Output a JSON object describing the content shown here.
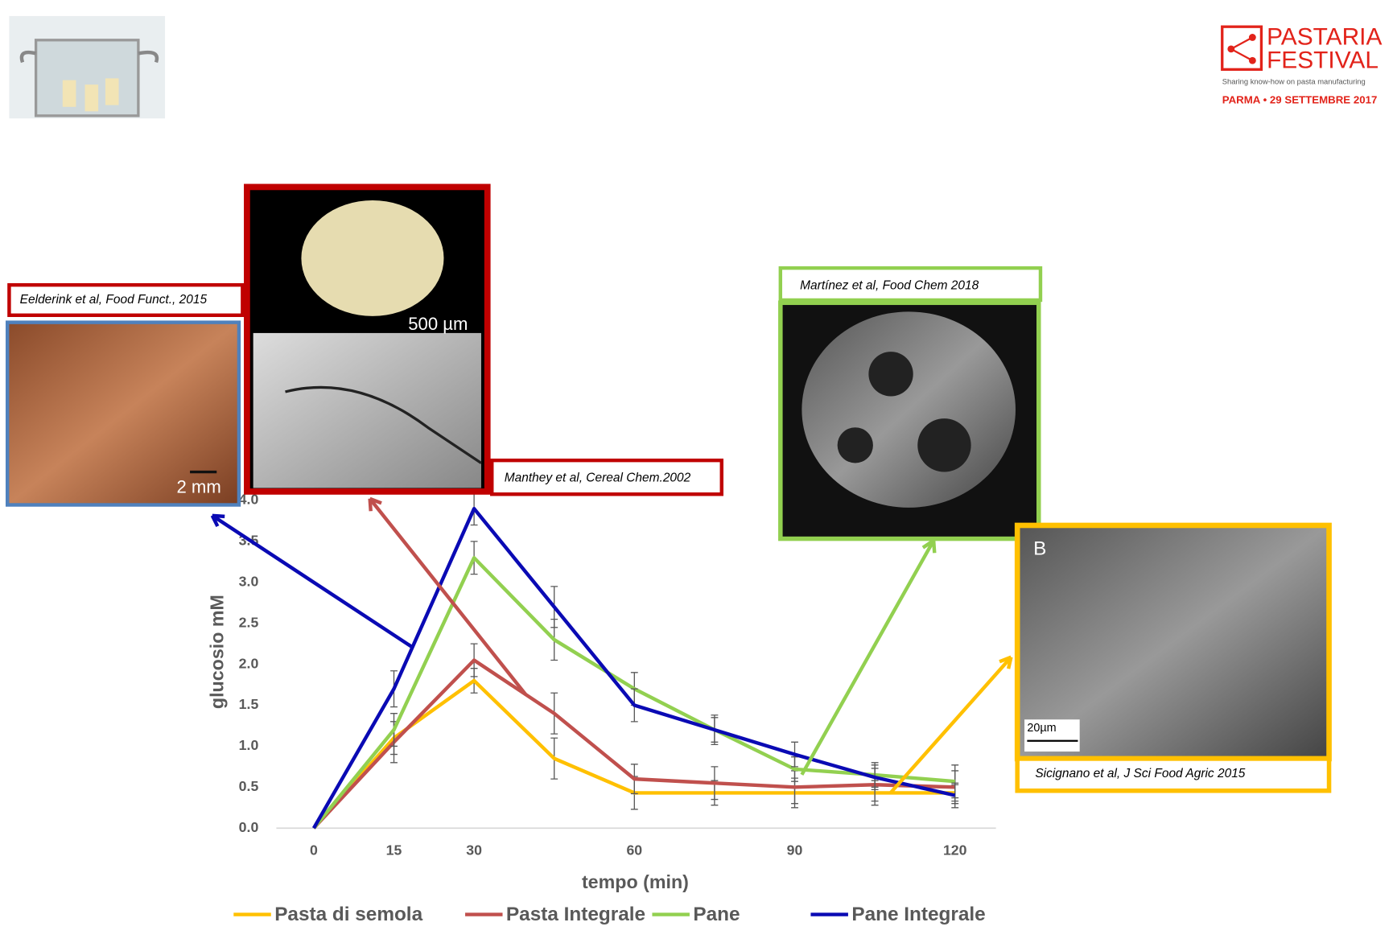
{
  "header": {
    "logo_line1": "PASTARIA",
    "logo_line2": "FESTIVAL",
    "tagline": "Sharing know-how on pasta manufacturing",
    "event": "PARMA • 29 SETTEMBRE 2017"
  },
  "figures": [
    {
      "citation": "Eelderink et al, Food Funct., 2015",
      "scale_label": "2 mm"
    },
    {
      "citation": "Manthey et al, Cereal Chem.2002",
      "scale_label": "500 µm"
    },
    {
      "citation": "Martínez et al, Food Chem 2018"
    },
    {
      "citation": "Sicignano  et al,  J  Sci Food Agric  2015",
      "panel_label": "B",
      "scale_label": "20µm"
    }
  ],
  "chart_data": {
    "type": "line",
    "xlabel": "tempo (min)",
    "ylabel": "glucosio mM",
    "x": [
      0,
      15,
      30,
      45,
      60,
      75,
      90,
      105,
      120
    ],
    "xlim": [
      0,
      120
    ],
    "xticks": [
      0,
      15,
      30,
      60,
      90,
      120
    ],
    "ylim": [
      0,
      4
    ],
    "yticks": [
      {
        "value": 0,
        "label": "0.0"
      },
      0.5,
      {
        "value": 1,
        "label": "1.0"
      },
      1.5,
      {
        "value": 2,
        "label": "2.0"
      },
      2.5,
      {
        "value": 3,
        "label": "3.0"
      },
      3.5,
      {
        "value": 4,
        "label": "4.0"
      }
    ],
    "grid": false,
    "series": [
      {
        "name": "Pasta di semola",
        "color": "#FFC000",
        "values": [
          0,
          1.1,
          1.8,
          0.85,
          0.43,
          0.43,
          0.43,
          0.43,
          0.43
        ],
        "errors": [
          0,
          0.2,
          0.15,
          0.25,
          0.2,
          0.15,
          0.18,
          0.15,
          0.1
        ]
      },
      {
        "name": "Pasta Integrale",
        "color": "#C0504D",
        "values": [
          0,
          1.05,
          2.05,
          1.4,
          0.6,
          0.55,
          0.5,
          0.53,
          0.5
        ],
        "errors": [
          0,
          0.25,
          0.2,
          0.25,
          0.18,
          0.2,
          0.2,
          0.2,
          0.2
        ]
      },
      {
        "name": "Pane",
        "color": "#92D050",
        "values": [
          0,
          1.2,
          3.3,
          2.3,
          1.7,
          1.2,
          0.72,
          0.65,
          0.57
        ],
        "errors": [
          0,
          0.2,
          0.2,
          0.25,
          0.2,
          0.15,
          0.15,
          0.15,
          0.2
        ]
      },
      {
        "name": "Pane Integrale",
        "color": "#0A0AB4",
        "values": [
          0,
          1.7,
          3.9,
          2.7,
          1.5,
          1.2,
          0.9,
          0.62,
          0.4
        ],
        "errors": [
          0,
          0.22,
          0.2,
          0.25,
          0.2,
          0.18,
          0.15,
          0.15,
          0.15
        ]
      }
    ]
  }
}
